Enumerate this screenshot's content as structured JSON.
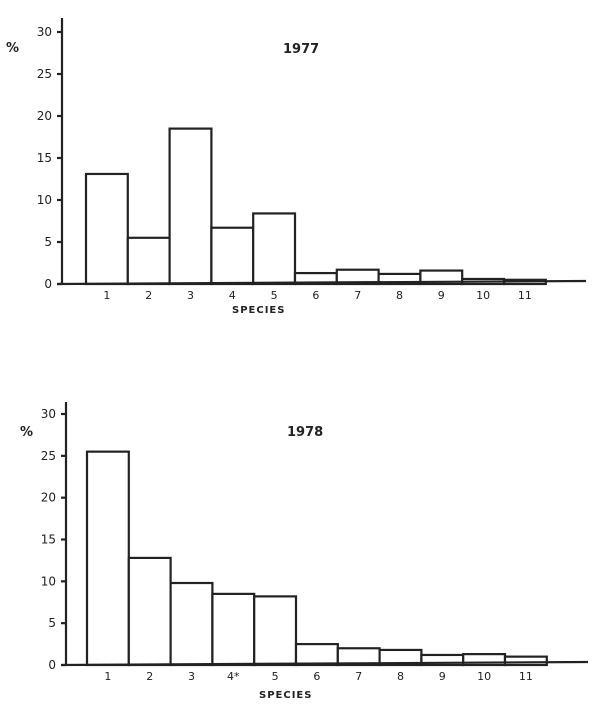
{
  "chart_data": [
    {
      "type": "bar",
      "title": "1977",
      "xlabel": "SPECIES",
      "ylabel": "%",
      "ylim": [
        0,
        30
      ],
      "yticks": [
        0,
        5,
        10,
        15,
        20,
        25,
        30
      ],
      "grid": false,
      "legend": null,
      "categories": [
        "1",
        "2",
        "3",
        "4",
        "5",
        "6",
        "7",
        "8",
        "9",
        "10",
        "11"
      ],
      "values": [
        13.1,
        5.5,
        18.5,
        6.7,
        8.4,
        1.3,
        1.7,
        1.2,
        1.6,
        0.6,
        0.5
      ]
    },
    {
      "type": "bar",
      "title": "1978",
      "xlabel": "SPECIES",
      "ylabel": "%",
      "ylim": [
        0,
        30
      ],
      "yticks": [
        0,
        5,
        10,
        15,
        20,
        25,
        30
      ],
      "grid": false,
      "legend": null,
      "categories": [
        "1",
        "2",
        "3",
        "4*",
        "5",
        "6",
        "7",
        "8",
        "9",
        "10",
        "11"
      ],
      "values": [
        25.5,
        12.8,
        9.8,
        8.5,
        8.2,
        2.5,
        2.0,
        1.8,
        1.2,
        1.3,
        1.0
      ]
    }
  ],
  "charts": [
    {
      "title": "1977",
      "xlabel": "SPECIES",
      "ylabel": "%",
      "ytick_labels": [
        "0",
        "5",
        "10",
        "15",
        "20",
        "25",
        "30"
      ],
      "category_labels": [
        "1",
        "2",
        "3",
        "4",
        "5",
        "6",
        "7",
        "8",
        "9",
        "10",
        "11"
      ]
    },
    {
      "title": "1978",
      "xlabel": "SPECIES",
      "ylabel": "%",
      "ytick_labels": [
        "0",
        "5",
        "10",
        "15",
        "20",
        "25",
        "30"
      ],
      "category_labels": [
        "1",
        "2",
        "3",
        "4*",
        "5",
        "6",
        "7",
        "8",
        "9",
        "10",
        "11"
      ]
    }
  ]
}
